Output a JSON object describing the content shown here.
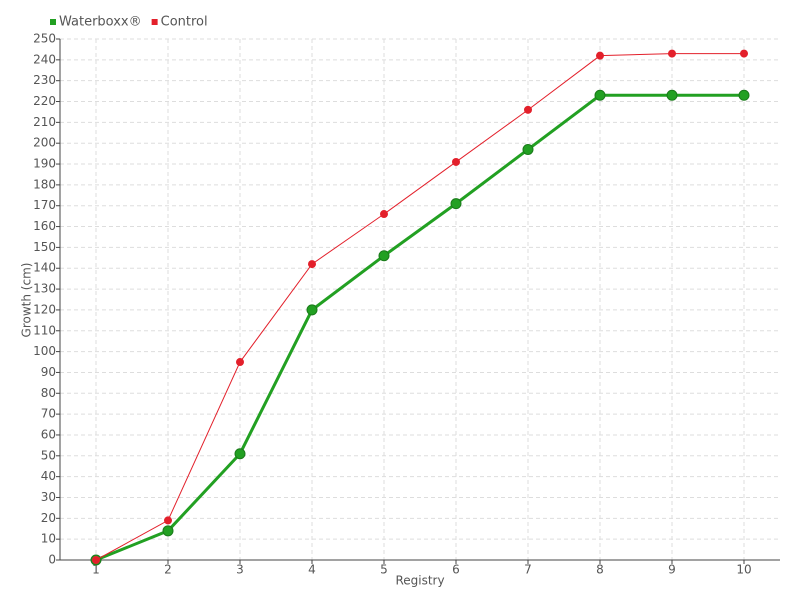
{
  "chart_data": {
    "type": "line",
    "x_label": "Registry",
    "y_label": "Growth (cm)",
    "x": [
      1,
      2,
      3,
      4,
      5,
      6,
      7,
      8,
      9,
      10
    ],
    "xlim": [
      0.5,
      10.5
    ],
    "xticks": [
      1,
      2,
      3,
      4,
      5,
      6,
      7,
      8,
      9,
      10
    ],
    "ylim": [
      0,
      250
    ],
    "yticks": [
      0,
      10,
      20,
      30,
      40,
      50,
      60,
      70,
      80,
      90,
      100,
      110,
      120,
      130,
      140,
      150,
      160,
      170,
      180,
      190,
      200,
      210,
      220,
      230,
      240,
      250
    ],
    "grid": true,
    "legend": "top-left",
    "series": [
      {
        "name": "Waterboxx®",
        "color": "#22a022",
        "values": [
          0,
          14,
          51,
          120,
          146,
          171,
          197,
          223,
          223,
          223
        ]
      },
      {
        "name": "Control",
        "color": "#e3202b",
        "values": [
          0,
          19,
          95,
          142,
          166,
          191,
          216,
          242,
          243,
          243
        ]
      }
    ]
  }
}
